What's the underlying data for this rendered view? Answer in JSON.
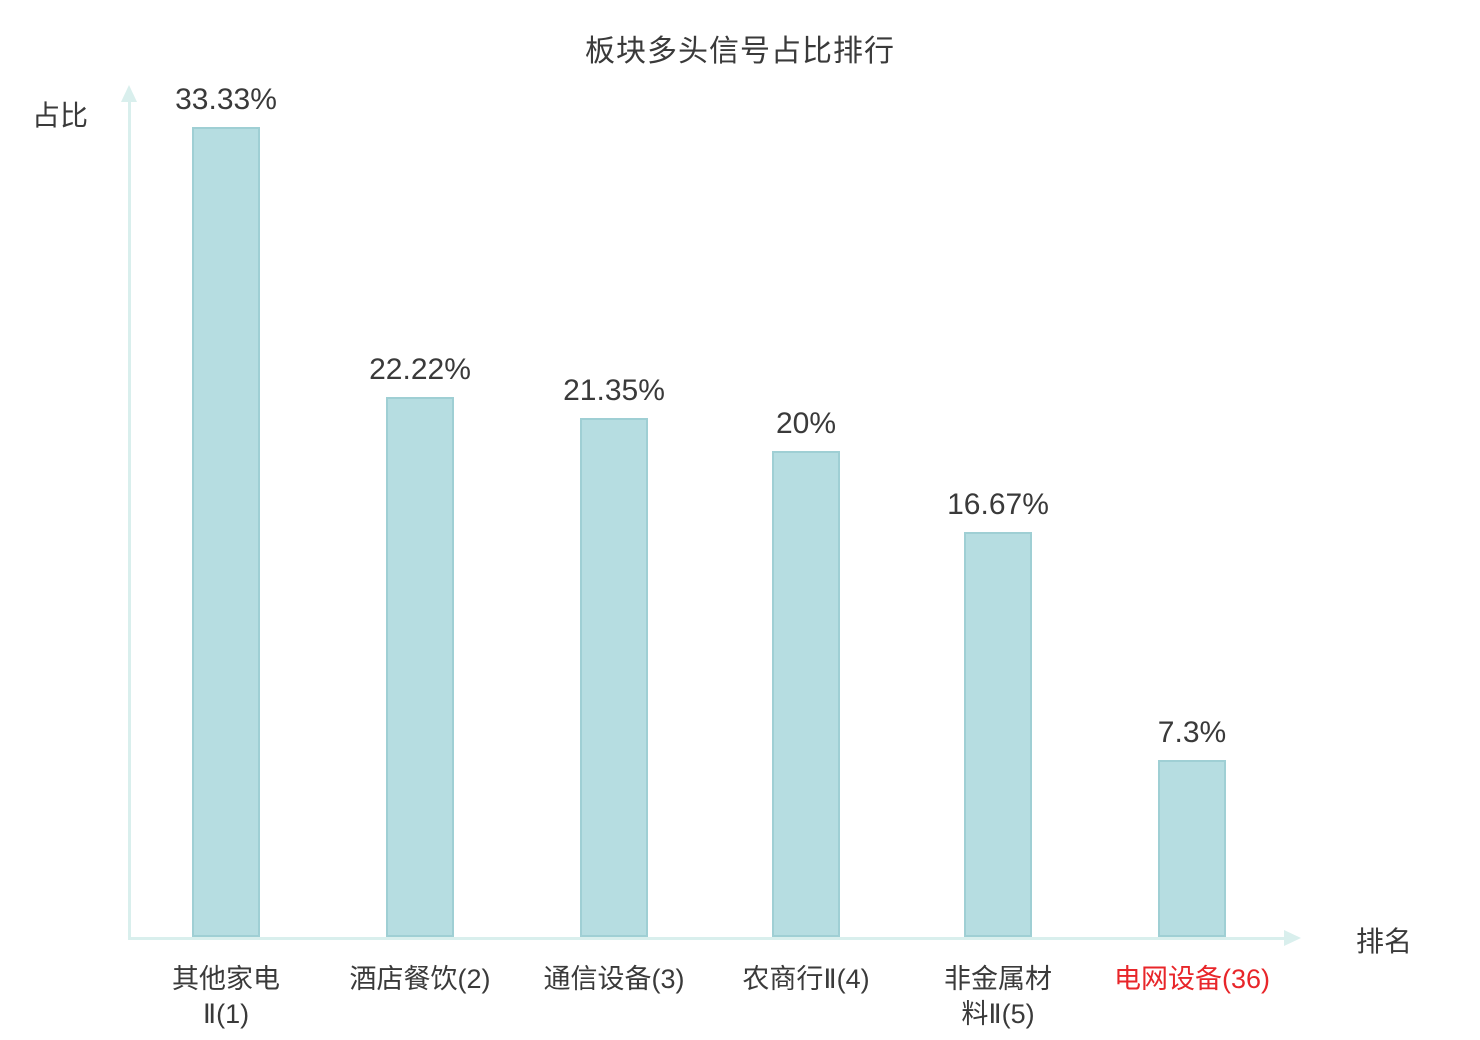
{
  "chart_data": {
    "type": "bar",
    "title": "板块多头信号占比排行",
    "ylabel": "占比",
    "xlabel": "排名",
    "categories": [
      "其他家电\nⅡ(1)",
      "酒店餐饮(2)",
      "通信设备(3)",
      "农商行Ⅱ(4)",
      "非金属材\n料Ⅱ(5)",
      "电网设备(36)"
    ],
    "values": [
      33.33,
      22.22,
      21.35,
      20,
      16.67,
      7.3
    ],
    "value_labels": [
      "33.33%",
      "22.22%",
      "21.35%",
      "20%",
      "16.67%",
      "7.3%"
    ],
    "ylim": [
      0,
      34
    ],
    "grid": false,
    "legend": "none",
    "bar_color": "#b6dde1",
    "bar_border_color": "#9fcfd4",
    "axis_color": "#d9efed",
    "text_color": "#3a3a3a",
    "highlight_index": 5,
    "highlight_color": "#e8262a"
  }
}
